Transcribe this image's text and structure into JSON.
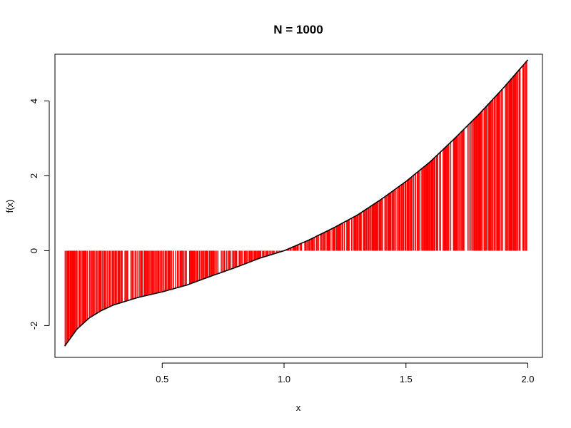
{
  "chart_data": {
    "type": "line",
    "title": "N = 1000",
    "xlabel": "x",
    "ylabel": "f(x)",
    "xlim": [
      0.06,
      2.06
    ],
    "ylim": [
      -2.85,
      5.25
    ],
    "x_ticks": [
      0.5,
      1.0,
      1.5,
      2.0
    ],
    "x_tick_labels": [
      "0.5",
      "1.0",
      "1.5",
      "2.0"
    ],
    "y_ticks": [
      -2,
      0,
      2,
      4
    ],
    "y_tick_labels": [
      "-2",
      "0",
      "2",
      "4"
    ],
    "grid": false,
    "legend": "none",
    "sample_count": 1000,
    "x_range": [
      0.1,
      2.0
    ],
    "series": [
      {
        "style": "line",
        "color": "#000000",
        "x": [
          0.1,
          0.15,
          0.2,
          0.25,
          0.3,
          0.4,
          0.5,
          0.6,
          0.7,
          0.8,
          0.9,
          1.0,
          1.1,
          1.2,
          1.3,
          1.4,
          1.5,
          1.6,
          1.7,
          1.8,
          1.9,
          2.0
        ],
        "y": [
          -2.55,
          -2.1,
          -1.8,
          -1.6,
          -1.45,
          -1.25,
          -1.1,
          -0.92,
          -0.68,
          -0.45,
          -0.2,
          0.0,
          0.28,
          0.6,
          0.95,
          1.38,
          1.85,
          2.38,
          3.0,
          3.65,
          4.35,
          5.1
        ]
      },
      {
        "style": "sticks",
        "color": "#ff0000",
        "baseline": 0
      }
    ]
  }
}
